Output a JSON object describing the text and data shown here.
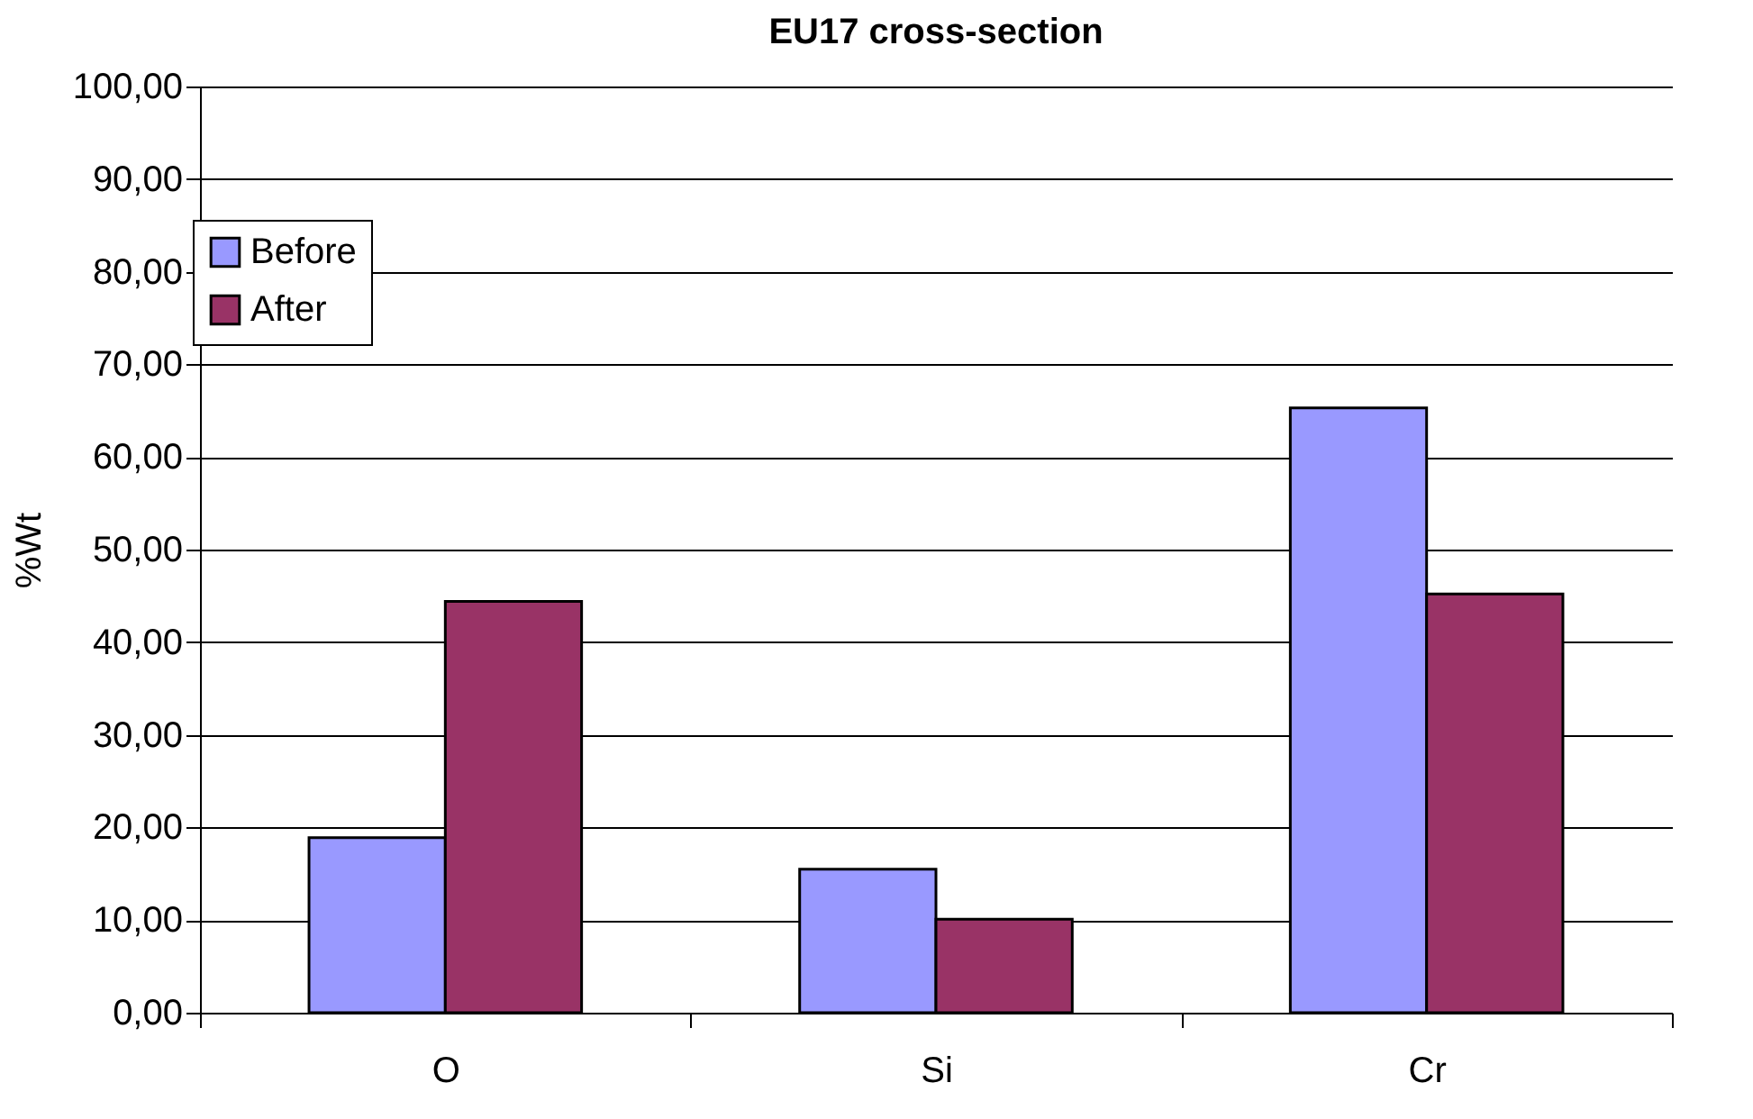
{
  "chart_data": {
    "type": "bar",
    "title": "EU17 cross-section",
    "ylabel": "%Wt",
    "categories": [
      "O",
      "Si",
      "Cr"
    ],
    "series": [
      {
        "name": "Before",
        "color": "#9999ff",
        "values": [
          18.9,
          15.5,
          65.3
        ]
      },
      {
        "name": "After",
        "color": "#993366",
        "values": [
          44.4,
          10.1,
          45.2
        ]
      }
    ],
    "ylim": [
      0,
      100
    ],
    "yticks": [
      {
        "value": 0,
        "label": "0,00"
      },
      {
        "value": 10,
        "label": "10,00"
      },
      {
        "value": 20,
        "label": "20,00"
      },
      {
        "value": 30,
        "label": "30,00"
      },
      {
        "value": 40,
        "label": "40,00"
      },
      {
        "value": 50,
        "label": "50,00"
      },
      {
        "value": 60,
        "label": "60,00"
      },
      {
        "value": 70,
        "label": "70,00"
      },
      {
        "value": 80,
        "label": "80,00"
      },
      {
        "value": 90,
        "label": "90,00"
      },
      {
        "value": 100,
        "label": "100,00"
      }
    ],
    "grid": "y",
    "legend": "top left"
  }
}
